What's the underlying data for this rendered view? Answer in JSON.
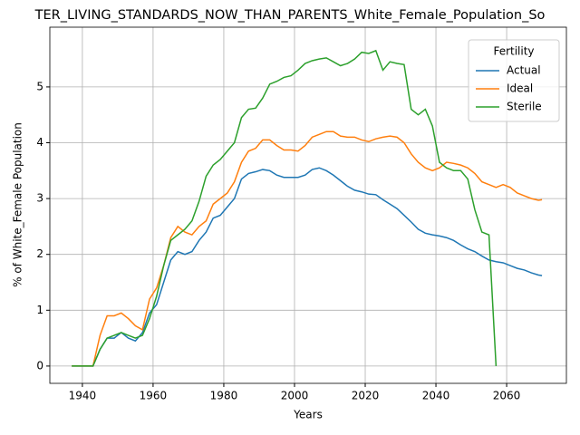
{
  "chart_data": {
    "type": "line",
    "title": "TER_LIVING_STANDARDS_NOW_THAN_PARENTS_White_Female_Population_So",
    "x_label": "Years",
    "y_label": "% of White_Female Population",
    "x": [
      1937,
      1939,
      1941,
      1943,
      1945,
      1947,
      1949,
      1951,
      1953,
      1955,
      1957,
      1959,
      1961,
      1963,
      1965,
      1967,
      1969,
      1971,
      1973,
      1975,
      1977,
      1979,
      1981,
      1983,
      1985,
      1987,
      1989,
      1991,
      1993,
      1995,
      1997,
      1999,
      2001,
      2003,
      2005,
      2007,
      2009,
      2011,
      2013,
      2015,
      2017,
      2019,
      2021,
      2023,
      2025,
      2027,
      2029,
      2031,
      2033,
      2035,
      2037,
      2039,
      2041,
      2043,
      2045,
      2047,
      2049,
      2051,
      2053,
      2055,
      2057,
      2059,
      2061,
      2063,
      2065,
      2067,
      2069,
      2070
    ],
    "series": [
      {
        "name": "Actual",
        "color": "#1f77b4",
        "values": [
          0,
          0,
          0,
          0,
          0.3,
          0.5,
          0.5,
          0.6,
          0.5,
          0.45,
          0.6,
          0.95,
          1.1,
          1.5,
          1.9,
          2.05,
          2.0,
          2.05,
          2.25,
          2.4,
          2.65,
          2.7,
          2.85,
          3.0,
          3.35,
          3.45,
          3.48,
          3.52,
          3.5,
          3.42,
          3.38,
          3.38,
          3.38,
          3.42,
          3.52,
          3.55,
          3.5,
          3.42,
          3.32,
          3.22,
          3.15,
          3.12,
          3.08,
          3.07,
          2.98,
          2.9,
          2.82,
          2.7,
          2.58,
          2.45,
          2.38,
          2.35,
          2.33,
          2.3,
          2.25,
          2.17,
          2.1,
          2.05,
          1.97,
          1.9,
          1.87,
          1.85,
          1.8,
          1.75,
          1.72,
          1.67,
          1.63,
          1.62
        ]
      },
      {
        "name": "Ideal",
        "color": "#ff7f0e",
        "values": [
          0,
          0,
          0,
          0,
          0.55,
          0.9,
          0.9,
          0.95,
          0.85,
          0.72,
          0.65,
          1.2,
          1.4,
          1.8,
          2.3,
          2.5,
          2.4,
          2.35,
          2.5,
          2.6,
          2.9,
          3.0,
          3.1,
          3.3,
          3.65,
          3.85,
          3.9,
          4.05,
          4.05,
          3.95,
          3.87,
          3.87,
          3.85,
          3.95,
          4.1,
          4.15,
          4.2,
          4.2,
          4.12,
          4.1,
          4.1,
          4.05,
          4.02,
          4.07,
          4.1,
          4.12,
          4.1,
          4.0,
          3.8,
          3.65,
          3.55,
          3.5,
          3.55,
          3.65,
          3.63,
          3.6,
          3.55,
          3.45,
          3.3,
          3.25,
          3.2,
          3.25,
          3.2,
          3.1,
          3.05,
          3.0,
          2.97,
          2.98
        ]
      },
      {
        "name": "Sterile",
        "color": "#2ca02c",
        "values": [
          0,
          0,
          0,
          0,
          0.3,
          0.5,
          0.55,
          0.6,
          0.55,
          0.5,
          0.55,
          0.85,
          1.25,
          1.8,
          2.25,
          2.35,
          2.45,
          2.6,
          2.95,
          3.4,
          3.6,
          3.7,
          3.85,
          4.0,
          4.45,
          4.6,
          4.62,
          4.8,
          5.05,
          5.1,
          5.17,
          5.2,
          5.3,
          5.42,
          5.47,
          5.5,
          5.52,
          5.45,
          5.38,
          5.42,
          5.5,
          5.62,
          5.6,
          5.65,
          5.3,
          5.45,
          5.42,
          5.4,
          4.6,
          4.5,
          4.6,
          4.3,
          3.65,
          3.55,
          3.5,
          3.5,
          3.35,
          2.8,
          2.4,
          2.35,
          0,
          null,
          null,
          null,
          null,
          null,
          null,
          null
        ]
      }
    ],
    "xlim": [
      1930.8,
      2076.9
    ],
    "ylim": [
      -0.31,
      6.07
    ],
    "xticks": [
      1940,
      1960,
      1980,
      2000,
      2020,
      2040,
      2060
    ],
    "yticks": [
      0,
      1,
      2,
      3,
      4,
      5
    ],
    "grid": true,
    "legend_title": "Fertility",
    "legend_position": "upper right"
  }
}
